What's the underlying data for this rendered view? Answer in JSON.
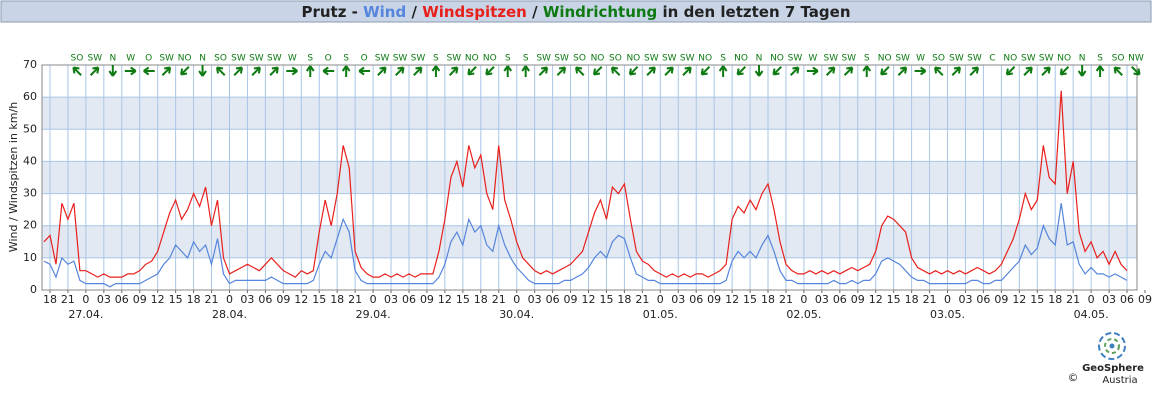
{
  "chart_data": {
    "type": "line",
    "title": {
      "station": "Prutz -",
      "separator": "/",
      "suffix": "in den letzten 7 Tagen"
    },
    "y_label": "Wind / Windspitzen in km/h",
    "ylim": [
      0,
      70
    ],
    "yticks": [
      0,
      10,
      20,
      30,
      40,
      50,
      60,
      70
    ],
    "xlim": [
      "26.04. 16:40",
      "04.05. 07:40"
    ],
    "grid": true,
    "xticks": [
      {
        "value": "26.04. 18:00",
        "label": "18"
      },
      {
        "value": "26.04. 21:00",
        "label": "21"
      },
      {
        "value": "27.04. 00:00",
        "label": "0"
      },
      {
        "value": "27.04. 03:00",
        "label": "03"
      },
      {
        "value": "27.04. 06:00",
        "label": "06"
      },
      {
        "value": "27.04. 09:00",
        "label": "09"
      },
      {
        "value": "27.04. 12:00",
        "label": "12"
      },
      {
        "value": "27.04. 15:00",
        "label": "15"
      },
      {
        "value": "27.04. 18:00",
        "label": "18"
      },
      {
        "value": "27.04. 21:00",
        "label": "21"
      },
      {
        "value": "28.04. 00:00",
        "label": "0"
      },
      {
        "value": "28.04. 03:00",
        "label": "03"
      },
      {
        "value": "28.04. 06:00",
        "label": "06"
      },
      {
        "value": "28.04. 09:00",
        "label": "09"
      },
      {
        "value": "28.04. 12:00",
        "label": "12"
      },
      {
        "value": "28.04. 15:00",
        "label": "15"
      },
      {
        "value": "28.04. 18:00",
        "label": "18"
      },
      {
        "value": "28.04. 21:00",
        "label": "21"
      },
      {
        "value": "29.04. 00:00",
        "label": "0"
      },
      {
        "value": "29.04. 03:00",
        "label": "03"
      },
      {
        "value": "29.04. 06:00",
        "label": "06"
      },
      {
        "value": "29.04. 09:00",
        "label": "09"
      },
      {
        "value": "29.04. 12:00",
        "label": "12"
      },
      {
        "value": "29.04. 15:00",
        "label": "15"
      },
      {
        "value": "29.04. 18:00",
        "label": "18"
      },
      {
        "value": "29.04. 21:00",
        "label": "21"
      },
      {
        "value": "30.04. 00:00",
        "label": "0"
      },
      {
        "value": "30.04. 03:00",
        "label": "03"
      },
      {
        "value": "30.04. 06:00",
        "label": "06"
      },
      {
        "value": "30.04. 09:00",
        "label": "09"
      },
      {
        "value": "30.04. 12:00",
        "label": "12"
      },
      {
        "value": "30.04. 15:00",
        "label": "15"
      },
      {
        "value": "30.04. 18:00",
        "label": "18"
      },
      {
        "value": "30.04. 21:00",
        "label": "21"
      },
      {
        "value": "01.05. 00:00",
        "label": "0"
      },
      {
        "value": "01.05. 03:00",
        "label": "03"
      },
      {
        "value": "01.05. 06:00",
        "label": "06"
      },
      {
        "value": "01.05. 09:00",
        "label": "09"
      },
      {
        "value": "01.05. 12:00",
        "label": "12"
      },
      {
        "value": "01.05. 15:00",
        "label": "15"
      },
      {
        "value": "01.05. 18:00",
        "label": "18"
      },
      {
        "value": "01.05. 21:00",
        "label": "21"
      },
      {
        "value": "02.05. 00:00",
        "label": "0"
      },
      {
        "value": "02.05. 03:00",
        "label": "03"
      },
      {
        "value": "02.05. 06:00",
        "label": "06"
      },
      {
        "value": "02.05. 09:00",
        "label": "09"
      },
      {
        "value": "02.05. 12:00",
        "label": "12"
      },
      {
        "value": "02.05. 15:00",
        "label": "15"
      },
      {
        "value": "02.05. 18:00",
        "label": "18"
      },
      {
        "value": "02.05. 21:00",
        "label": "21"
      },
      {
        "value": "03.05. 00:00",
        "label": "0"
      },
      {
        "value": "03.05. 03:00",
        "label": "03"
      },
      {
        "value": "03.05. 06:00",
        "label": "06"
      },
      {
        "value": "03.05. 09:00",
        "label": "09"
      },
      {
        "value": "03.05. 12:00",
        "label": "12"
      },
      {
        "value": "03.05. 15:00",
        "label": "15"
      },
      {
        "value": "03.05. 18:00",
        "label": "18"
      },
      {
        "value": "03.05. 21:00",
        "label": "21"
      },
      {
        "value": "04.05. 00:00",
        "label": "0"
      },
      {
        "value": "04.05. 03:00",
        "label": "03"
      },
      {
        "value": "04.05. 06:00",
        "label": "06"
      },
      {
        "value": "04.05. 09:00",
        "label": "09"
      }
    ],
    "date_labels": [
      {
        "value": "27.04. 00:00",
        "label": "27.04."
      },
      {
        "value": "28.04. 00:00",
        "label": "28.04."
      },
      {
        "value": "29.04. 00:00",
        "label": "29.04."
      },
      {
        "value": "30.04. 00:00",
        "label": "30.04."
      },
      {
        "value": "01.05. 00:00",
        "label": "01.05."
      },
      {
        "value": "02.05. 00:00",
        "label": "02.05."
      },
      {
        "value": "03.05. 00:00",
        "label": "03.05."
      },
      {
        "value": "04.05. 00:00",
        "label": "04.05."
      }
    ],
    "x": [
      "26.04. 17:00",
      "26.04. 18:00",
      "26.04. 19:00",
      "26.04. 20:00",
      "26.04. 21:00",
      "26.04. 22:00",
      "26.04. 23:00",
      "27.04. 00:00",
      "27.04. 01:00",
      "27.04. 02:00",
      "27.04. 03:00",
      "27.04. 04:00",
      "27.04. 05:00",
      "27.04. 06:00",
      "27.04. 07:00",
      "27.04. 08:00",
      "27.04. 09:00",
      "27.04. 10:00",
      "27.04. 11:00",
      "27.04. 12:00",
      "27.04. 13:00",
      "27.04. 14:00",
      "27.04. 15:00",
      "27.04. 16:00",
      "27.04. 17:00",
      "27.04. 18:00",
      "27.04. 19:00",
      "27.04. 20:00",
      "27.04. 21:00",
      "27.04. 22:00",
      "27.04. 23:00",
      "28.04. 00:00",
      "28.04. 01:00",
      "28.04. 02:00",
      "28.04. 03:00",
      "28.04. 04:00",
      "28.04. 05:00",
      "28.04. 06:00",
      "28.04. 07:00",
      "28.04. 08:00",
      "28.04. 09:00",
      "28.04. 10:00",
      "28.04. 11:00",
      "28.04. 12:00",
      "28.04. 13:00",
      "28.04. 14:00",
      "28.04. 15:00",
      "28.04. 16:00",
      "28.04. 17:00",
      "28.04. 18:00",
      "28.04. 19:00",
      "28.04. 20:00",
      "28.04. 21:00",
      "28.04. 22:00",
      "28.04. 23:00",
      "29.04. 00:00",
      "29.04. 01:00",
      "29.04. 02:00",
      "29.04. 03:00",
      "29.04. 04:00",
      "29.04. 05:00",
      "29.04. 06:00",
      "29.04. 07:00",
      "29.04. 08:00",
      "29.04. 09:00",
      "29.04. 10:00",
      "29.04. 11:00",
      "29.04. 12:00",
      "29.04. 13:00",
      "29.04. 14:00",
      "29.04. 15:00",
      "29.04. 16:00",
      "29.04. 17:00",
      "29.04. 18:00",
      "29.04. 19:00",
      "29.04. 20:00",
      "29.04. 21:00",
      "29.04. 22:00",
      "29.04. 23:00",
      "30.04. 00:00",
      "30.04. 01:00",
      "30.04. 02:00",
      "30.04. 03:00",
      "30.04. 04:00",
      "30.04. 05:00",
      "30.04. 06:00",
      "30.04. 07:00",
      "30.04. 08:00",
      "30.04. 09:00",
      "30.04. 10:00",
      "30.04. 11:00",
      "30.04. 12:00",
      "30.04. 13:00",
      "30.04. 14:00",
      "30.04. 15:00",
      "30.04. 16:00",
      "30.04. 17:00",
      "30.04. 18:00",
      "30.04. 19:00",
      "30.04. 20:00",
      "30.04. 21:00",
      "30.04. 22:00",
      "30.04. 23:00",
      "01.05. 00:00",
      "01.05. 01:00",
      "01.05. 02:00",
      "01.05. 03:00",
      "01.05. 04:00",
      "01.05. 05:00",
      "01.05. 06:00",
      "01.05. 07:00",
      "01.05. 08:00",
      "01.05. 09:00",
      "01.05. 10:00",
      "01.05. 11:00",
      "01.05. 12:00",
      "01.05. 13:00",
      "01.05. 14:00",
      "01.05. 15:00",
      "01.05. 16:00",
      "01.05. 17:00",
      "01.05. 18:00",
      "01.05. 19:00",
      "01.05. 20:00",
      "01.05. 21:00",
      "01.05. 22:00",
      "01.05. 23:00",
      "02.05. 00:00",
      "02.05. 01:00",
      "02.05. 02:00",
      "02.05. 03:00",
      "02.05. 04:00",
      "02.05. 05:00",
      "02.05. 06:00",
      "02.05. 07:00",
      "02.05. 08:00",
      "02.05. 09:00",
      "02.05. 10:00",
      "02.05. 11:00",
      "02.05. 12:00",
      "02.05. 13:00",
      "02.05. 14:00",
      "02.05. 15:00",
      "02.05. 16:00",
      "02.05. 17:00",
      "02.05. 18:00",
      "02.05. 19:00",
      "02.05. 20:00",
      "02.05. 21:00",
      "02.05. 22:00",
      "02.05. 23:00",
      "03.05. 00:00",
      "03.05. 01:00",
      "03.05. 02:00",
      "03.05. 03:00",
      "03.05. 04:00",
      "03.05. 05:00",
      "03.05. 06:00",
      "03.05. 07:00",
      "03.05. 08:00",
      "03.05. 09:00",
      "03.05. 10:00",
      "03.05. 11:00",
      "03.05. 12:00",
      "03.05. 13:00",
      "03.05. 14:00",
      "03.05. 15:00",
      "03.05. 16:00",
      "03.05. 17:00",
      "03.05. 18:00",
      "03.05. 19:00",
      "03.05. 20:00",
      "03.05. 21:00",
      "03.05. 22:00",
      "03.05. 23:00",
      "04.05. 00:00",
      "04.05. 01:00",
      "04.05. 02:00",
      "04.05. 03:00",
      "04.05. 04:00",
      "04.05. 05:00",
      "04.05. 06:00"
    ],
    "series": [
      {
        "name": "Wind",
        "color": "#5585dc",
        "values": [
          9,
          8,
          4,
          10,
          8,
          9,
          3,
          2,
          2,
          2,
          2,
          1,
          2,
          2,
          2,
          2,
          2,
          3,
          4,
          5,
          8,
          10,
          14,
          12,
          10,
          15,
          12,
          14,
          8,
          16,
          5,
          2,
          3,
          3,
          3,
          3,
          3,
          3,
          4,
          3,
          2,
          2,
          2,
          2,
          2,
          3,
          8,
          12,
          10,
          16,
          22,
          18,
          6,
          3,
          2,
          2,
          2,
          2,
          2,
          2,
          2,
          2,
          2,
          2,
          2,
          2,
          4,
          8,
          15,
          18,
          14,
          22,
          18,
          20,
          14,
          12,
          20,
          14,
          10,
          7,
          5,
          3,
          2,
          2,
          2,
          2,
          2,
          3,
          3,
          4,
          5,
          7,
          10,
          12,
          10,
          15,
          17,
          16,
          10,
          5,
          4,
          3,
          3,
          2,
          2,
          2,
          2,
          2,
          2,
          2,
          2,
          2,
          2,
          2,
          3,
          9,
          12,
          10,
          12,
          10,
          14,
          17,
          12,
          6,
          3,
          3,
          2,
          2,
          2,
          2,
          2,
          2,
          3,
          2,
          2,
          3,
          2,
          3,
          3,
          5,
          9,
          10,
          9,
          8,
          6,
          4,
          3,
          3,
          2,
          2,
          2,
          2,
          2,
          2,
          2,
          3,
          3,
          2,
          2,
          3,
          3,
          5,
          7,
          9,
          14,
          11,
          13,
          20,
          16,
          14,
          27,
          14,
          15,
          8,
          5,
          7,
          5,
          5,
          4,
          5,
          4,
          3
        ]
      },
      {
        "name": "Windspitzen",
        "color": "#e8201c",
        "values": [
          15,
          17,
          8,
          27,
          22,
          27,
          6,
          6,
          5,
          4,
          5,
          4,
          4,
          4,
          5,
          5,
          6,
          8,
          9,
          12,
          18,
          24,
          28,
          22,
          25,
          30,
          26,
          32,
          20,
          28,
          10,
          5,
          6,
          7,
          8,
          7,
          6,
          8,
          10,
          8,
          6,
          5,
          4,
          6,
          5,
          6,
          18,
          28,
          20,
          30,
          45,
          38,
          12,
          7,
          5,
          4,
          4,
          5,
          4,
          5,
          4,
          5,
          4,
          5,
          5,
          5,
          12,
          22,
          35,
          40,
          32,
          45,
          38,
          42,
          30,
          25,
          45,
          28,
          22,
          15,
          10,
          8,
          6,
          5,
          6,
          5,
          6,
          7,
          8,
          10,
          12,
          18,
          24,
          28,
          22,
          32,
          30,
          33,
          22,
          12,
          9,
          8,
          6,
          5,
          4,
          5,
          4,
          5,
          4,
          5,
          5,
          4,
          5,
          6,
          8,
          22,
          26,
          24,
          28,
          25,
          30,
          33,
          25,
          15,
          8,
          6,
          5,
          5,
          6,
          5,
          6,
          5,
          6,
          5,
          6,
          7,
          6,
          7,
          8,
          12,
          20,
          23,
          22,
          20,
          18,
          10,
          7,
          6,
          5,
          6,
          5,
          6,
          5,
          6,
          5,
          6,
          7,
          6,
          5,
          6,
          8,
          12,
          16,
          22,
          30,
          25,
          28,
          45,
          35,
          33,
          62,
          30,
          40,
          18,
          12,
          15,
          10,
          12,
          8,
          12,
          8,
          6
        ]
      }
    ],
    "directions": {
      "name": "Windrichtung",
      "color": "#0e7a12",
      "values": [
        "SO",
        "SW",
        "N",
        "W",
        "O",
        "SW",
        "NO",
        "N",
        "SO",
        "SW",
        "SW",
        "SW",
        "W",
        "S",
        "O",
        "S",
        "O",
        "SW",
        "SW",
        "SW",
        "S",
        "SW",
        "NO",
        "NO",
        "S",
        "S",
        "SW",
        "SW",
        "SO",
        "NO",
        "SO",
        "NO",
        "SW",
        "SW",
        "SW",
        "NO",
        "S",
        "NO",
        "N",
        "NO",
        "SW",
        "W",
        "SW",
        "SW",
        "S",
        "NO",
        "SW",
        "W",
        "SO",
        "SW",
        "SW",
        "C",
        "NO",
        "SW",
        "SW",
        "NO",
        "N",
        "S",
        "SO",
        "NW"
      ]
    },
    "footer": {
      "copyright": "©",
      "logo_top": "GeoSphere",
      "logo_bottom": "Austria"
    }
  }
}
